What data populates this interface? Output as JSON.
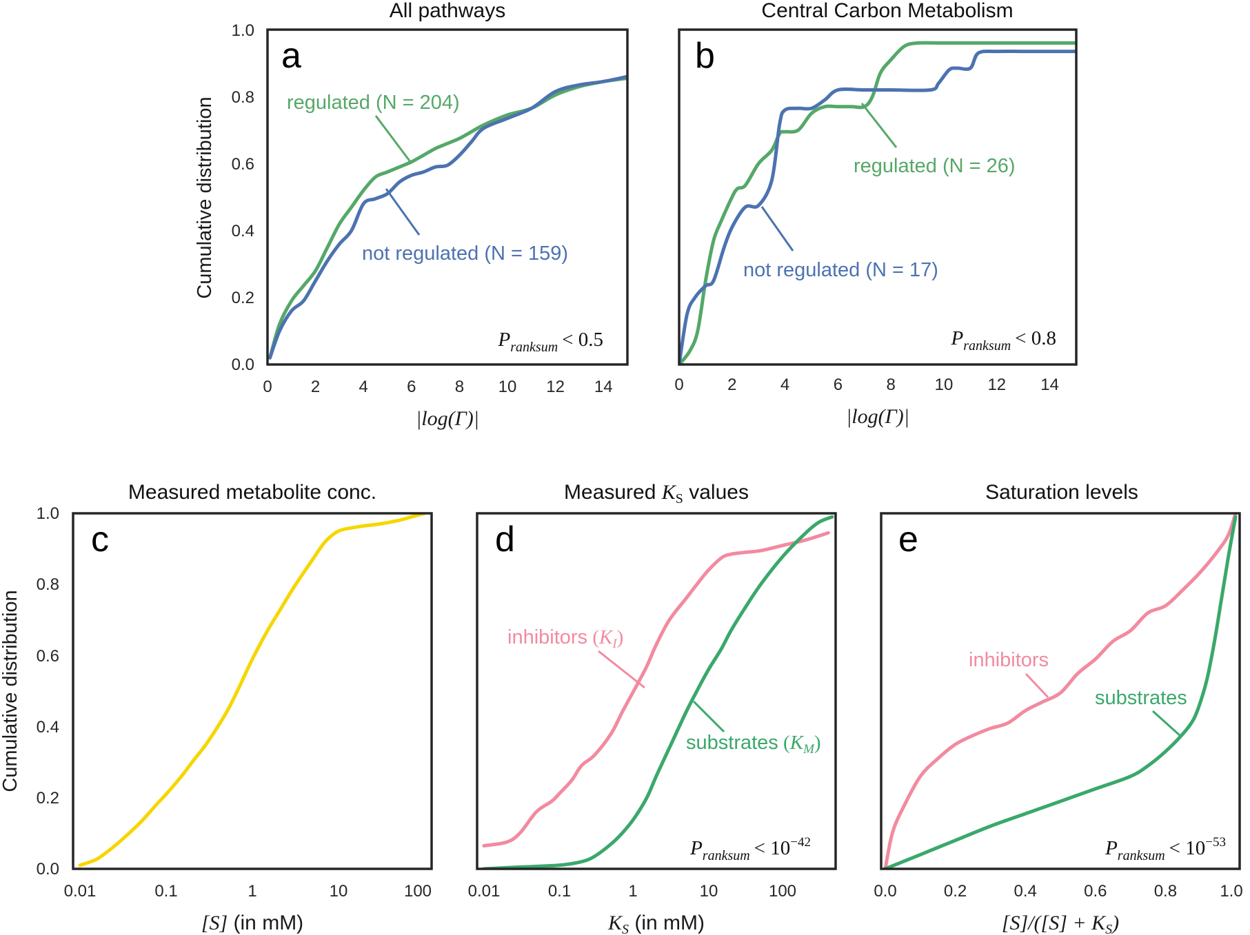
{
  "chart_data": [
    {
      "id": "a",
      "type": "line",
      "panel_letter": "a",
      "title": "All pathways",
      "xlabel": "|log(Γ)|",
      "ylabel": "Cumulative distribution",
      "xlim": [
        0,
        15
      ],
      "ylim": [
        0,
        1
      ],
      "x_ticks": [
        "0",
        "2",
        "4",
        "6",
        "8",
        "10",
        "12",
        "14"
      ],
      "y_ticks": [
        "0.0",
        "0.2",
        "0.4",
        "0.6",
        "0.8",
        "1.0"
      ],
      "p_value": {
        "symbol": "P",
        "subscript": "ranksum",
        "relation": "< 0.5"
      },
      "series": [
        {
          "name": "regulated (N = 204)",
          "color": "#55a868",
          "x": [
            0.1,
            0.5,
            1,
            1.5,
            2,
            2.5,
            3,
            3.5,
            4,
            4.5,
            5,
            5.5,
            6,
            6.5,
            7,
            7.5,
            8,
            8.5,
            9,
            10,
            11,
            12,
            13,
            14,
            15
          ],
          "y": [
            0.02,
            0.12,
            0.19,
            0.235,
            0.28,
            0.35,
            0.42,
            0.47,
            0.52,
            0.56,
            0.575,
            0.59,
            0.605,
            0.625,
            0.645,
            0.66,
            0.675,
            0.695,
            0.715,
            0.745,
            0.765,
            0.805,
            0.83,
            0.845,
            0.855
          ]
        },
        {
          "name": "not regulated (N = 159)",
          "color": "#4c72b0",
          "x": [
            0.1,
            0.5,
            1,
            1.5,
            2,
            2.5,
            3,
            3.5,
            4,
            4.5,
            5,
            5.5,
            6,
            6.5,
            7,
            7.5,
            8,
            8.5,
            9,
            10,
            11,
            12,
            13,
            14,
            15
          ],
          "y": [
            0.02,
            0.1,
            0.16,
            0.19,
            0.25,
            0.31,
            0.36,
            0.4,
            0.48,
            0.495,
            0.51,
            0.545,
            0.565,
            0.575,
            0.59,
            0.595,
            0.625,
            0.665,
            0.705,
            0.735,
            0.765,
            0.815,
            0.835,
            0.845,
            0.86
          ]
        }
      ]
    },
    {
      "id": "b",
      "type": "line",
      "panel_letter": "b",
      "title": "Central Carbon Metabolism",
      "xlabel": "|log(Γ)|",
      "ylabel": "",
      "xlim": [
        0,
        15
      ],
      "ylim": [
        0,
        1
      ],
      "x_ticks": [
        "0",
        "2",
        "4",
        "6",
        "8",
        "10",
        "12",
        "14"
      ],
      "p_value": {
        "symbol": "P",
        "subscript": "ranksum",
        "relation": "< 0.8"
      },
      "series": [
        {
          "name": "regulated (N = 26)",
          "color": "#55a868",
          "x": [
            0,
            0.4,
            0.7,
            1.0,
            1.3,
            1.6,
            2,
            2.2,
            2.5,
            3.0,
            3.5,
            3.8,
            4.0,
            4.5,
            5,
            5.5,
            6,
            6.5,
            7,
            7.3,
            7.6,
            8.0,
            8.5,
            9.0,
            10,
            11,
            12,
            13,
            14,
            15
          ],
          "y": [
            0,
            0.04,
            0.1,
            0.25,
            0.37,
            0.43,
            0.5,
            0.525,
            0.535,
            0.6,
            0.64,
            0.69,
            0.695,
            0.7,
            0.75,
            0.77,
            0.77,
            0.77,
            0.77,
            0.8,
            0.87,
            0.91,
            0.95,
            0.96,
            0.96,
            0.96,
            0.96,
            0.96,
            0.96,
            0.96
          ]
        },
        {
          "name": "not regulated (N = 17)",
          "color": "#4c72b0",
          "x": [
            0,
            0.3,
            0.6,
            1.0,
            1.3,
            1.7,
            2.0,
            2.5,
            3.0,
            3.5,
            3.8,
            4.0,
            4.5,
            5.0,
            5.5,
            6.0,
            7.0,
            8.0,
            9.5,
            9.8,
            10.2,
            10.5,
            11,
            11.3,
            12,
            13,
            14,
            15
          ],
          "y": [
            0,
            0.15,
            0.2,
            0.235,
            0.25,
            0.35,
            0.41,
            0.47,
            0.475,
            0.55,
            0.72,
            0.76,
            0.765,
            0.765,
            0.79,
            0.82,
            0.82,
            0.82,
            0.82,
            0.84,
            0.88,
            0.885,
            0.885,
            0.93,
            0.935,
            0.935,
            0.935,
            0.935
          ]
        }
      ]
    },
    {
      "id": "c",
      "type": "line",
      "panel_letter": "c",
      "title": "Measured metabolite conc.",
      "xlabel_math": "[S]",
      "xlabel_text": " (in mM)",
      "ylabel": "Cumulative distribution",
      "x_scale": "log",
      "xlim": [
        0.01,
        100
      ],
      "ylim": [
        0,
        1
      ],
      "x_ticks": [
        "0.01",
        "0.1",
        "1",
        "10",
        "100"
      ],
      "y_ticks": [
        "0.0",
        "0.2",
        "0.4",
        "0.6",
        "0.8",
        "1.0"
      ],
      "series": [
        {
          "color": "#f6d600",
          "x": [
            0.01,
            0.015,
            0.02,
            0.03,
            0.05,
            0.08,
            0.1,
            0.15,
            0.2,
            0.3,
            0.5,
            0.7,
            1,
            1.5,
            2,
            3,
            5,
            7,
            10,
            15,
            20,
            30,
            50,
            70,
            100
          ],
          "y": [
            0.01,
            0.025,
            0.045,
            0.08,
            0.13,
            0.185,
            0.21,
            0.26,
            0.3,
            0.355,
            0.44,
            0.51,
            0.59,
            0.67,
            0.72,
            0.79,
            0.87,
            0.92,
            0.95,
            0.96,
            0.965,
            0.97,
            0.98,
            0.99,
            1.0
          ]
        }
      ]
    },
    {
      "id": "d",
      "type": "line",
      "panel_letter": "d",
      "title_text": "Measured ",
      "title_math": "K",
      "title_sub": "S",
      "title_suffix": " values",
      "xlabel_math": "K",
      "xlabel_sub": "S",
      "xlabel_text": " (in mM)",
      "x_scale": "log",
      "xlim": [
        0.01,
        500
      ],
      "ylim": [
        0,
        1
      ],
      "x_ticks": [
        "0.01",
        "0.1",
        "1",
        "10",
        "100"
      ],
      "p_value": {
        "symbol": "P",
        "subscript": "ranksum",
        "relation": "< 10",
        "exponent": "−42"
      },
      "series": [
        {
          "name": "inhibitors",
          "name_math": "K",
          "name_sub": "I",
          "color": "#f28aa0",
          "x": [
            0.01,
            0.02,
            0.03,
            0.05,
            0.08,
            0.1,
            0.15,
            0.2,
            0.3,
            0.5,
            0.7,
            1,
            1.5,
            2,
            3,
            5,
            7,
            10,
            15,
            20,
            30,
            50,
            100,
            200,
            400
          ],
          "y": [
            0.065,
            0.075,
            0.1,
            0.16,
            0.19,
            0.21,
            0.25,
            0.29,
            0.32,
            0.38,
            0.44,
            0.5,
            0.57,
            0.63,
            0.7,
            0.76,
            0.8,
            0.84,
            0.875,
            0.885,
            0.89,
            0.895,
            0.91,
            0.925,
            0.945
          ]
        },
        {
          "name": "substrates",
          "name_math": "K",
          "name_sub": "M",
          "color": "#3aa86b",
          "x": [
            0.01,
            0.03,
            0.1,
            0.2,
            0.3,
            0.5,
            0.7,
            1,
            1.5,
            2,
            3,
            5,
            7,
            10,
            15,
            20,
            30,
            50,
            100,
            200,
            300,
            450
          ],
          "y": [
            0.0,
            0.005,
            0.01,
            0.02,
            0.035,
            0.07,
            0.1,
            0.14,
            0.2,
            0.26,
            0.34,
            0.44,
            0.5,
            0.56,
            0.62,
            0.67,
            0.73,
            0.8,
            0.88,
            0.945,
            0.975,
            0.99
          ]
        }
      ]
    },
    {
      "id": "e",
      "type": "line",
      "panel_letter": "e",
      "title": "Saturation levels",
      "xlabel_math": "[S]/([S] + K",
      "xlabel_sub": "S",
      "xlabel_close": ")",
      "xlim": [
        0,
        1
      ],
      "ylim": [
        0,
        1
      ],
      "x_ticks": [
        "0.0",
        "0.2",
        "0.4",
        "0.6",
        "0.8",
        "1.0"
      ],
      "p_value": {
        "symbol": "P",
        "subscript": "ranksum",
        "relation": "< 10",
        "exponent": "−53"
      },
      "series": [
        {
          "name": "inhibitors",
          "color": "#f28aa0",
          "x": [
            0,
            0.02,
            0.05,
            0.1,
            0.15,
            0.2,
            0.25,
            0.3,
            0.35,
            0.4,
            0.45,
            0.5,
            0.55,
            0.6,
            0.65,
            0.7,
            0.75,
            0.8,
            0.85,
            0.9,
            0.95,
            0.98,
            1.0
          ],
          "y": [
            0.0,
            0.1,
            0.17,
            0.26,
            0.31,
            0.35,
            0.375,
            0.395,
            0.41,
            0.445,
            0.47,
            0.495,
            0.55,
            0.59,
            0.64,
            0.67,
            0.72,
            0.74,
            0.785,
            0.835,
            0.895,
            0.94,
            1.0
          ]
        },
        {
          "name": "substrates",
          "color": "#3aa86b",
          "x": [
            0,
            0.05,
            0.1,
            0.15,
            0.2,
            0.3,
            0.4,
            0.5,
            0.6,
            0.7,
            0.75,
            0.8,
            0.85,
            0.88,
            0.9,
            0.92,
            0.94,
            0.96,
            0.98,
            1.0
          ],
          "y": [
            0.0,
            0.02,
            0.04,
            0.06,
            0.08,
            0.12,
            0.155,
            0.19,
            0.225,
            0.26,
            0.29,
            0.33,
            0.38,
            0.42,
            0.47,
            0.54,
            0.64,
            0.76,
            0.88,
            0.99
          ]
        }
      ]
    }
  ]
}
